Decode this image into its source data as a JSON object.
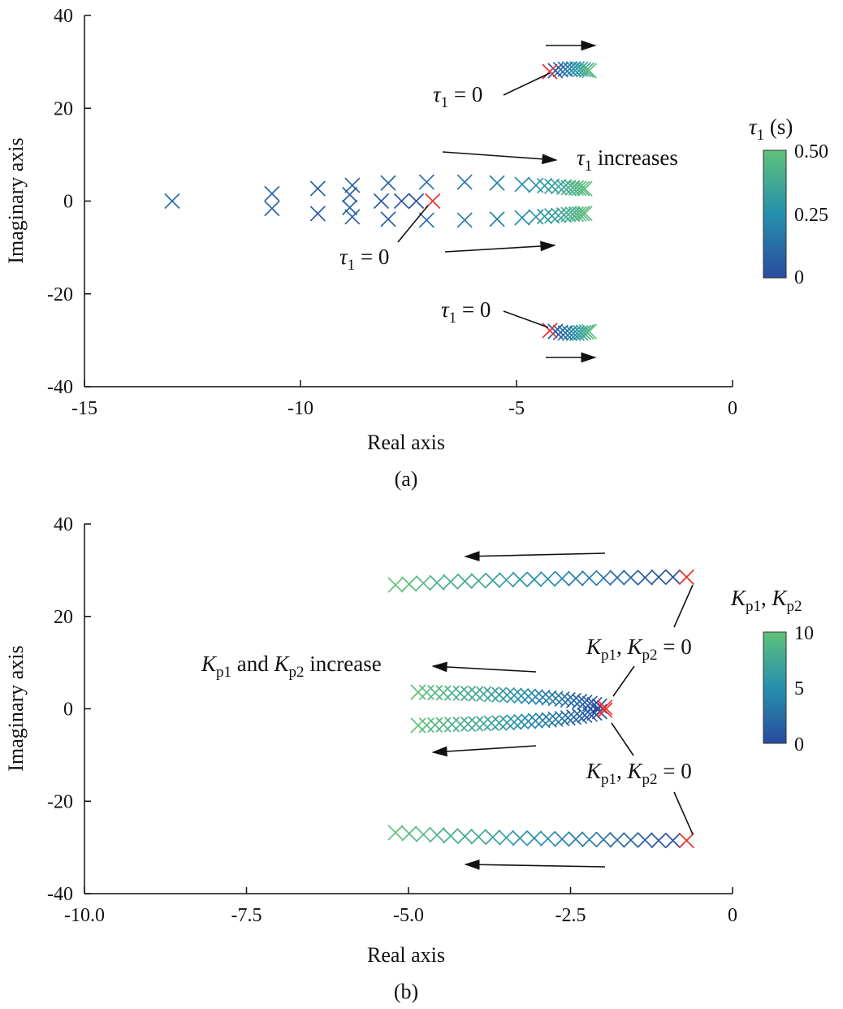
{
  "chart_data": [
    {
      "type": "scatter",
      "panel_label": "(a)",
      "xlabel": "Real axis",
      "ylabel": "Imaginary axis",
      "xlim": [
        -15,
        0
      ],
      "ylim": [
        -40,
        40
      ],
      "xticks": [
        "-15",
        "-10",
        "-5",
        "0"
      ],
      "xtick_values": [
        -15,
        -10,
        -5,
        0
      ],
      "yticks": [
        "40",
        "20",
        "0",
        "-20",
        "-40"
      ],
      "ytick_values": [
        40,
        20,
        0,
        -20,
        -40
      ],
      "colorbar": {
        "title_sym": "τ",
        "title_sub": "1",
        "title_rest": " (s)",
        "range": [
          0,
          0.5
        ],
        "ticks": [
          "0.50",
          "0.25",
          "0"
        ],
        "tick_values": [
          0.5,
          0.25,
          0
        ]
      },
      "marker": "x",
      "start_color": "#e8312f",
      "branches": [
        {
          "name": "high-frequency upper",
          "mirror": true,
          "x": [
            -4.23,
            -4.1,
            -3.98,
            -3.87,
            -3.77,
            -3.68,
            -3.6,
            -3.52,
            -3.45,
            -3.38,
            -3.32
          ],
          "y": [
            27.9,
            28.1,
            28.3,
            28.4,
            28.5,
            28.5,
            28.5,
            28.4,
            28.3,
            28.2,
            28.1
          ],
          "param": [
            0,
            0.05,
            0.1,
            0.15,
            0.2,
            0.25,
            0.3,
            0.35,
            0.4,
            0.45,
            0.5
          ]
        },
        {
          "name": "real axis",
          "mirror": false,
          "x": [
            -6.94,
            -7.32,
            -7.66,
            -8.13,
            -8.86,
            -8.86,
            -10.66,
            -10.66,
            -12.97
          ],
          "y": [
            0,
            0,
            0,
            0,
            1.4,
            -1.4,
            1.6,
            -1.6,
            0
          ],
          "param": [
            0,
            0.02,
            0.04,
            0.06,
            0.08,
            0.08,
            0.1,
            0.1,
            0.12
          ]
        },
        {
          "name": "low-frequency pair",
          "mirror": true,
          "x": [
            -9.6,
            -8.8,
            -7.97,
            -7.08,
            -6.2,
            -5.45,
            -4.87,
            -4.55,
            -4.35,
            -4.18,
            -4.03,
            -3.9,
            -3.8,
            -3.7,
            -3.62,
            -3.55,
            -3.48,
            -3.42
          ],
          "y": [
            2.7,
            3.4,
            3.9,
            4.1,
            4.1,
            3.9,
            3.6,
            3.4,
            3.3,
            3.2,
            3.1,
            3.0,
            2.9,
            2.85,
            2.8,
            2.75,
            2.7,
            2.65
          ],
          "param": [
            0.04,
            0.06,
            0.09,
            0.12,
            0.16,
            0.2,
            0.24,
            0.27,
            0.3,
            0.32,
            0.35,
            0.37,
            0.4,
            0.42,
            0.44,
            0.46,
            0.48,
            0.5
          ]
        }
      ],
      "annotations": {
        "top_zero": {
          "sym": "τ",
          "sub": "1",
          "rest": " = 0"
        },
        "mid_zero": {
          "sym": "τ",
          "sub": "1",
          "rest": " = 0"
        },
        "bottom_zero": {
          "sym": "τ",
          "sub": "1",
          "rest": " = 0"
        },
        "increases": {
          "sym": "τ",
          "sub": "1",
          "rest": " increases"
        }
      }
    },
    {
      "type": "scatter",
      "panel_label": "(b)",
      "xlabel": "Real axis",
      "ylabel": "Imaginary axis",
      "xlim": [
        -10,
        0
      ],
      "ylim": [
        -40,
        40
      ],
      "xticks": [
        "-10.0",
        "-7.5",
        "-5.0",
        "-2.5",
        "0"
      ],
      "xtick_values": [
        -10,
        -7.5,
        -5,
        -2.5,
        0
      ],
      "yticks": [
        "40",
        "20",
        "0",
        "-20",
        "-40"
      ],
      "ytick_values": [
        40,
        20,
        0,
        -20,
        -40
      ],
      "colorbar": {
        "title_sym1": "K",
        "title_sub1": "p1",
        "title_sep": ", ",
        "title_sym2": "K",
        "title_sub2": "p2",
        "range": [
          0,
          10
        ],
        "ticks": [
          "10",
          "5",
          "0"
        ],
        "tick_values": [
          10,
          5,
          0
        ]
      },
      "marker": "x",
      "start_color": "#e8312f",
      "branches": [
        {
          "name": "high-frequency pair",
          "mirror": true,
          "x": [
            -0.71,
            -0.92,
            -1.14,
            -1.35,
            -1.57,
            -1.78,
            -1.99,
            -2.21,
            -2.42,
            -2.63,
            -2.85,
            -3.06,
            -3.28,
            -3.49,
            -3.7,
            -3.92,
            -4.13,
            -4.35,
            -4.56,
            -4.77,
            -4.99,
            -5.2
          ],
          "y": [
            28.5,
            28.5,
            28.5,
            28.4,
            28.4,
            28.4,
            28.3,
            28.3,
            28.2,
            28.2,
            28.1,
            28.0,
            28.0,
            27.9,
            27.8,
            27.7,
            27.6,
            27.5,
            27.3,
            27.2,
            27.0,
            26.8
          ],
          "param_range": [
            0,
            10
          ]
        },
        {
          "name": "low-frequency pair",
          "mirror": true,
          "x": [
            -1.97,
            -2.05,
            -2.13,
            -2.2,
            -2.28,
            -2.36,
            -2.45,
            -2.54,
            -2.63,
            -2.73,
            -2.83,
            -2.93,
            -3.04,
            -3.15,
            -3.26,
            -3.37,
            -3.48,
            -3.6,
            -3.72,
            -3.84,
            -3.96,
            -4.08,
            -4.2,
            -4.33,
            -4.46,
            -4.59,
            -4.72,
            -4.85
          ],
          "y": [
            0.3,
            0.6,
            0.9,
            1.15,
            1.4,
            1.6,
            1.8,
            1.95,
            2.1,
            2.25,
            2.4,
            2.5,
            2.6,
            2.7,
            2.8,
            2.9,
            3.0,
            3.05,
            3.1,
            3.2,
            3.25,
            3.3,
            3.35,
            3.4,
            3.45,
            3.5,
            3.55,
            3.6
          ],
          "param_range": [
            0,
            10
          ]
        }
      ],
      "annotations": {
        "increase": {
          "sym1": "K",
          "sub1": "p1",
          "mid": " and ",
          "sym2": "K",
          "sub2": "p2",
          "rest": " increase"
        },
        "zero_upper": {
          "sym1": "K",
          "sub1": "p1",
          "mid": ", ",
          "sym2": "K",
          "sub2": "p2",
          "rest": " = 0"
        },
        "zero_lower": {
          "sym1": "K",
          "sub1": "p1",
          "mid": ", ",
          "sym2": "K",
          "sub2": "p2",
          "rest": " = 0"
        }
      }
    }
  ]
}
